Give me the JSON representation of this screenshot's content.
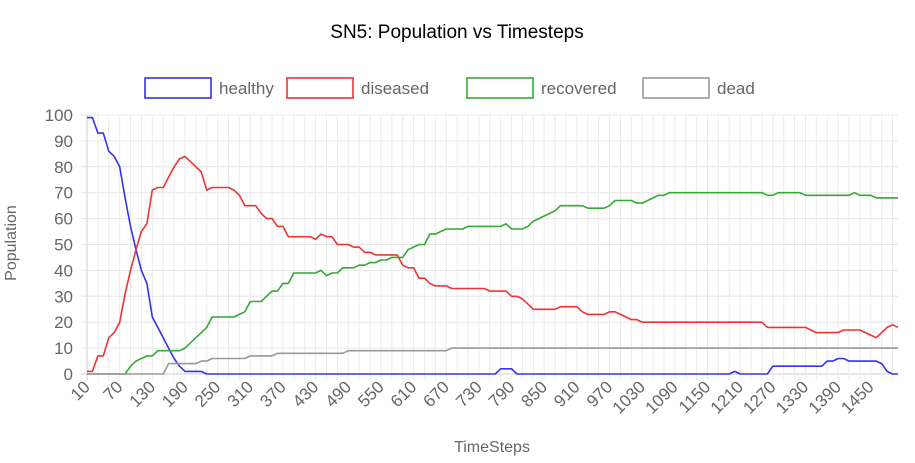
{
  "chart_data": {
    "type": "line",
    "title": "SN5: Population vs Timesteps",
    "xlabel": "TimeSteps",
    "ylabel": "Population",
    "ylim": [
      0,
      100
    ],
    "yticks": [
      0,
      10,
      20,
      30,
      40,
      50,
      60,
      70,
      80,
      90,
      100
    ],
    "grid": true,
    "legend_position": "top",
    "x": [
      10,
      20,
      30,
      40,
      50,
      60,
      70,
      80,
      90,
      100,
      110,
      120,
      130,
      140,
      150,
      160,
      170,
      180,
      190,
      200,
      210,
      220,
      230,
      240,
      250,
      260,
      270,
      280,
      290,
      300,
      310,
      320,
      330,
      340,
      350,
      360,
      370,
      380,
      390,
      400,
      410,
      420,
      430,
      440,
      450,
      460,
      470,
      480,
      490,
      500,
      510,
      520,
      530,
      540,
      550,
      560,
      570,
      580,
      590,
      600,
      610,
      620,
      630,
      640,
      650,
      660,
      670,
      680,
      690,
      700,
      710,
      720,
      730,
      740,
      750,
      760,
      770,
      780,
      790,
      800,
      810,
      820,
      830,
      840,
      850,
      860,
      870,
      880,
      890,
      900,
      910,
      920,
      930,
      940,
      950,
      960,
      970,
      980,
      990,
      1000,
      1010,
      1020,
      1030,
      1040,
      1050,
      1060,
      1070,
      1080,
      1090,
      1100,
      1110,
      1120,
      1130,
      1140,
      1150,
      1160,
      1170,
      1180,
      1190,
      1200,
      1210,
      1220,
      1230,
      1240,
      1250,
      1260,
      1270,
      1280,
      1290,
      1300,
      1310,
      1320,
      1330,
      1340,
      1350,
      1360,
      1370,
      1380,
      1390,
      1400,
      1410,
      1420,
      1430,
      1440,
      1450,
      1460,
      1470,
      1480,
      1490,
      1500
    ],
    "xtick_labels": [
      "10",
      "70",
      "130",
      "190",
      "250",
      "310",
      "370",
      "430",
      "490",
      "550",
      "610",
      "670",
      "730",
      "790",
      "850",
      "910",
      "970",
      "1030",
      "1090",
      "1150",
      "1210",
      "1270",
      "1330",
      "1390",
      "1450"
    ],
    "series": [
      {
        "name": "healthy",
        "color": "#3333ee",
        "values": [
          99,
          99,
          93,
          93,
          86,
          84,
          80,
          68,
          57,
          48,
          40,
          35,
          22,
          18,
          14,
          10,
          6,
          3,
          1,
          1,
          1,
          1,
          0,
          0,
          0,
          0,
          0,
          0,
          0,
          0,
          0,
          0,
          0,
          0,
          0,
          0,
          0,
          0,
          0,
          0,
          0,
          0,
          0,
          0,
          0,
          0,
          0,
          0,
          0,
          0,
          0,
          0,
          0,
          0,
          0,
          0,
          0,
          0,
          0,
          0,
          0,
          0,
          0,
          0,
          0,
          0,
          0,
          0,
          0,
          0,
          0,
          0,
          0,
          0,
          0,
          0,
          2,
          2,
          2,
          0,
          0,
          0,
          0,
          0,
          0,
          0,
          0,
          0,
          0,
          0,
          0,
          0,
          0,
          0,
          0,
          0,
          0,
          0,
          0,
          0,
          0,
          0,
          0,
          0,
          0,
          0,
          0,
          0,
          0,
          0,
          0,
          0,
          0,
          0,
          0,
          0,
          0,
          0,
          0,
          1,
          0,
          0,
          0,
          0,
          0,
          0,
          3,
          3,
          3,
          3,
          3,
          3,
          3,
          3,
          3,
          3,
          5,
          5,
          6,
          6,
          5,
          5,
          5,
          5,
          5,
          5,
          4,
          1,
          0,
          0
        ]
      },
      {
        "name": "diseased",
        "color": "#ee3333",
        "values": [
          1,
          1,
          7,
          7,
          14,
          16,
          20,
          31,
          40,
          48,
          55,
          58,
          71,
          72,
          72,
          76,
          80,
          83,
          84,
          82,
          80,
          78,
          71,
          72,
          72,
          72,
          72,
          71,
          69,
          65,
          65,
          65,
          62,
          60,
          60,
          57,
          57,
          53,
          53,
          53,
          53,
          53,
          52,
          54,
          53,
          53,
          50,
          50,
          50,
          49,
          49,
          47,
          47,
          46,
          46,
          46,
          46,
          46,
          42,
          41,
          41,
          37,
          37,
          35,
          34,
          34,
          34,
          33,
          33,
          33,
          33,
          33,
          33,
          33,
          32,
          32,
          32,
          32,
          30,
          30,
          29,
          27,
          25,
          25,
          25,
          25,
          25,
          26,
          26,
          26,
          26,
          24,
          23,
          23,
          23,
          23,
          24,
          24,
          23,
          22,
          21,
          21,
          20,
          20,
          20,
          20,
          20,
          20,
          20,
          20,
          20,
          20,
          20,
          20,
          20,
          20,
          20,
          20,
          20,
          20,
          20,
          20,
          20,
          20,
          20,
          18,
          18,
          18,
          18,
          18,
          18,
          18,
          18,
          17,
          16,
          16,
          16,
          16,
          16,
          17,
          17,
          17,
          17,
          16,
          15,
          14,
          16,
          18,
          19,
          18
        ]
      },
      {
        "name": "recovered",
        "color": "#33aa33",
        "values": [
          0,
          0,
          0,
          0,
          0,
          0,
          0,
          0,
          3,
          5,
          6,
          7,
          7,
          9,
          9,
          9,
          9,
          9,
          10,
          12,
          14,
          16,
          18,
          22,
          22,
          22,
          22,
          22,
          23,
          24,
          28,
          28,
          28,
          30,
          32,
          32,
          35,
          35,
          39,
          39,
          39,
          39,
          39,
          40,
          38,
          39,
          39,
          41,
          41,
          41,
          42,
          42,
          43,
          43,
          44,
          44,
          45,
          45,
          45,
          48,
          49,
          50,
          50,
          54,
          54,
          55,
          56,
          56,
          56,
          56,
          57,
          57,
          57,
          57,
          57,
          57,
          57,
          58,
          56,
          56,
          56,
          57,
          59,
          60,
          61,
          62,
          63,
          65,
          65,
          65,
          65,
          65,
          64,
          64,
          64,
          64,
          65,
          67,
          67,
          67,
          67,
          66,
          66,
          67,
          68,
          69,
          69,
          70,
          70,
          70,
          70,
          70,
          70,
          70,
          70,
          70,
          70,
          70,
          70,
          70,
          70,
          70,
          70,
          70,
          70,
          69,
          69,
          70,
          70,
          70,
          70,
          70,
          69,
          69,
          69,
          69,
          69,
          69,
          69,
          69,
          69,
          70,
          69,
          69,
          69,
          68,
          68,
          68,
          68,
          68
        ]
      },
      {
        "name": "dead",
        "color": "#999999",
        "values": [
          0,
          0,
          0,
          0,
          0,
          0,
          0,
          0,
          0,
          0,
          0,
          0,
          0,
          0,
          0,
          4,
          4,
          4,
          4,
          4,
          4,
          5,
          5,
          6,
          6,
          6,
          6,
          6,
          6,
          6,
          7,
          7,
          7,
          7,
          7,
          8,
          8,
          8,
          8,
          8,
          8,
          8,
          8,
          8,
          8,
          8,
          8,
          8,
          9,
          9,
          9,
          9,
          9,
          9,
          9,
          9,
          9,
          9,
          9,
          9,
          9,
          9,
          9,
          9,
          9,
          9,
          9,
          10,
          10,
          10,
          10,
          10,
          10,
          10,
          10,
          10,
          10,
          10,
          10,
          10,
          10,
          10,
          10,
          10,
          10,
          10,
          10,
          10,
          10,
          10,
          10,
          10,
          10,
          10,
          10,
          10,
          10,
          10,
          10,
          10,
          10,
          10,
          10,
          10,
          10,
          10,
          10,
          10,
          10,
          10,
          10,
          10,
          10,
          10,
          10,
          10,
          10,
          10,
          10,
          10,
          10,
          10,
          10,
          10,
          10,
          10,
          10,
          10,
          10,
          10,
          10,
          10,
          10,
          10,
          10,
          10,
          10,
          10,
          10,
          10,
          10,
          10,
          10,
          10,
          10,
          10,
          10,
          10,
          10,
          10
        ]
      }
    ]
  }
}
